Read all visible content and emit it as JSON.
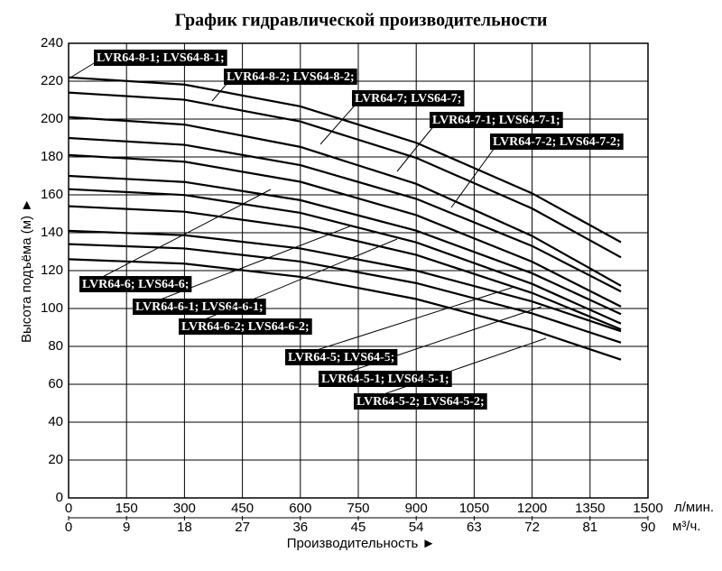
{
  "chart_data": {
    "type": "line",
    "title": "График гидравлической производительности",
    "x_label": "Производительность ►",
    "y_label": "Высота подъёма (м) ►",
    "x_unit": "л/мин.",
    "x2_unit": "м³/ч.",
    "xlim": [
      0,
      1500
    ],
    "xticks": [
      0,
      150,
      300,
      450,
      600,
      750,
      900,
      1050,
      1200,
      1350,
      1500
    ],
    "x2lim": [
      0,
      90
    ],
    "x2ticks": [
      0,
      9,
      18,
      27,
      36,
      45,
      54,
      63,
      72,
      81,
      90
    ],
    "ylim": [
      0,
      240
    ],
    "yticks": [
      0,
      20,
      40,
      60,
      80,
      100,
      120,
      140,
      160,
      180,
      200,
      220,
      240
    ],
    "grid": true,
    "color": "#000000",
    "x": [
      0,
      300,
      600,
      900,
      1200,
      1430
    ],
    "series": [
      {
        "name": "LVR64-8-1; LVS64-8-1;",
        "values": [
          222,
          218.2,
          206.7,
          187.5,
          160.8,
          135
        ]
      },
      {
        "name": "LVR64-8-2; LVS64-8-2;",
        "values": [
          214,
          210.2,
          198.7,
          179.5,
          152.8,
          127
        ]
      },
      {
        "name": "LVR64-7; LVS64-7;",
        "values": [
          201,
          197.1,
          185.3,
          165.8,
          138.3,
          112
        ]
      },
      {
        "name": "LVR64-7-1; LVS64-7-1;",
        "values": [
          190,
          186.4,
          175.7,
          157.9,
          133.0,
          109
        ]
      },
      {
        "name": "LVR64-7-2; LVS64-7-2;",
        "values": [
          181,
          177.5,
          166.9,
          149.3,
          124.7,
          101
        ]
      },
      {
        "name": "LVR64-6; LVS64-6;",
        "values": [
          170,
          166.8,
          157.2,
          141.1,
          118.6,
          97
        ]
      },
      {
        "name": "LVR64-6-1; LVS64-6-1;",
        "values": [
          163,
          159.9,
          150.5,
          134.9,
          113.0,
          92
        ]
      },
      {
        "name": "LVR64-6-2; LVS64-6-2;",
        "values": [
          154,
          151.1,
          142.6,
          128.3,
          108.2,
          89
        ]
      },
      {
        "name": "LVR64-5; LVS64-5;",
        "values": [
          141,
          138.7,
          131.7,
          120.0,
          103.7,
          88
        ]
      },
      {
        "name": "LVR64-5-1; LVS64-5-1;",
        "values": [
          134,
          131.7,
          124.8,
          113.4,
          97.4,
          82
        ]
      },
      {
        "name": "LVR64-5-2; LVS64-5-2;",
        "values": [
          126,
          123.7,
          116.7,
          105.0,
          88.7,
          73
        ]
      }
    ]
  }
}
